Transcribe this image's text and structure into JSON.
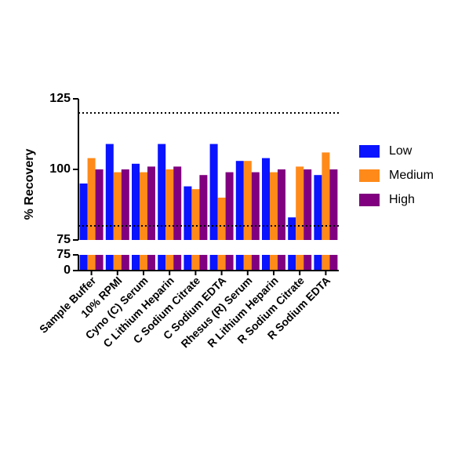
{
  "chart_data": {
    "type": "bar",
    "y_label": "% Recovery",
    "categories": [
      "Sample Buffer",
      "10% RPMI",
      "Cyno (C) Serum",
      "C Lithium Heparin",
      "C Sodium Citrate",
      "C Sodium EDTA",
      "Rhesus (R) Serum",
      "R Lithium Heparin",
      "R Sodium Citrate",
      "R Sodium EDTA"
    ],
    "series": [
      {
        "name": "Low",
        "color": "#0a14ff",
        "values": [
          95,
          109,
          102,
          109,
          94,
          109,
          103,
          104,
          83,
          98
        ]
      },
      {
        "name": "Medium",
        "color": "#ff8a1a",
        "values": [
          104,
          99,
          99,
          100,
          93,
          90,
          103,
          99,
          101,
          106
        ]
      },
      {
        "name": "High",
        "color": "#800080",
        "values": [
          100,
          100,
          101,
          101,
          98,
          99,
          99,
          100,
          100,
          100
        ]
      }
    ],
    "y_segments": [
      {
        "ylim": [
          0,
          75
        ],
        "yticks": [
          0,
          75
        ]
      },
      {
        "ylim": [
          75,
          125
        ],
        "yticks": [
          75,
          100,
          125
        ]
      }
    ],
    "reference_lines": [
      120,
      80
    ],
    "legend": "right"
  }
}
